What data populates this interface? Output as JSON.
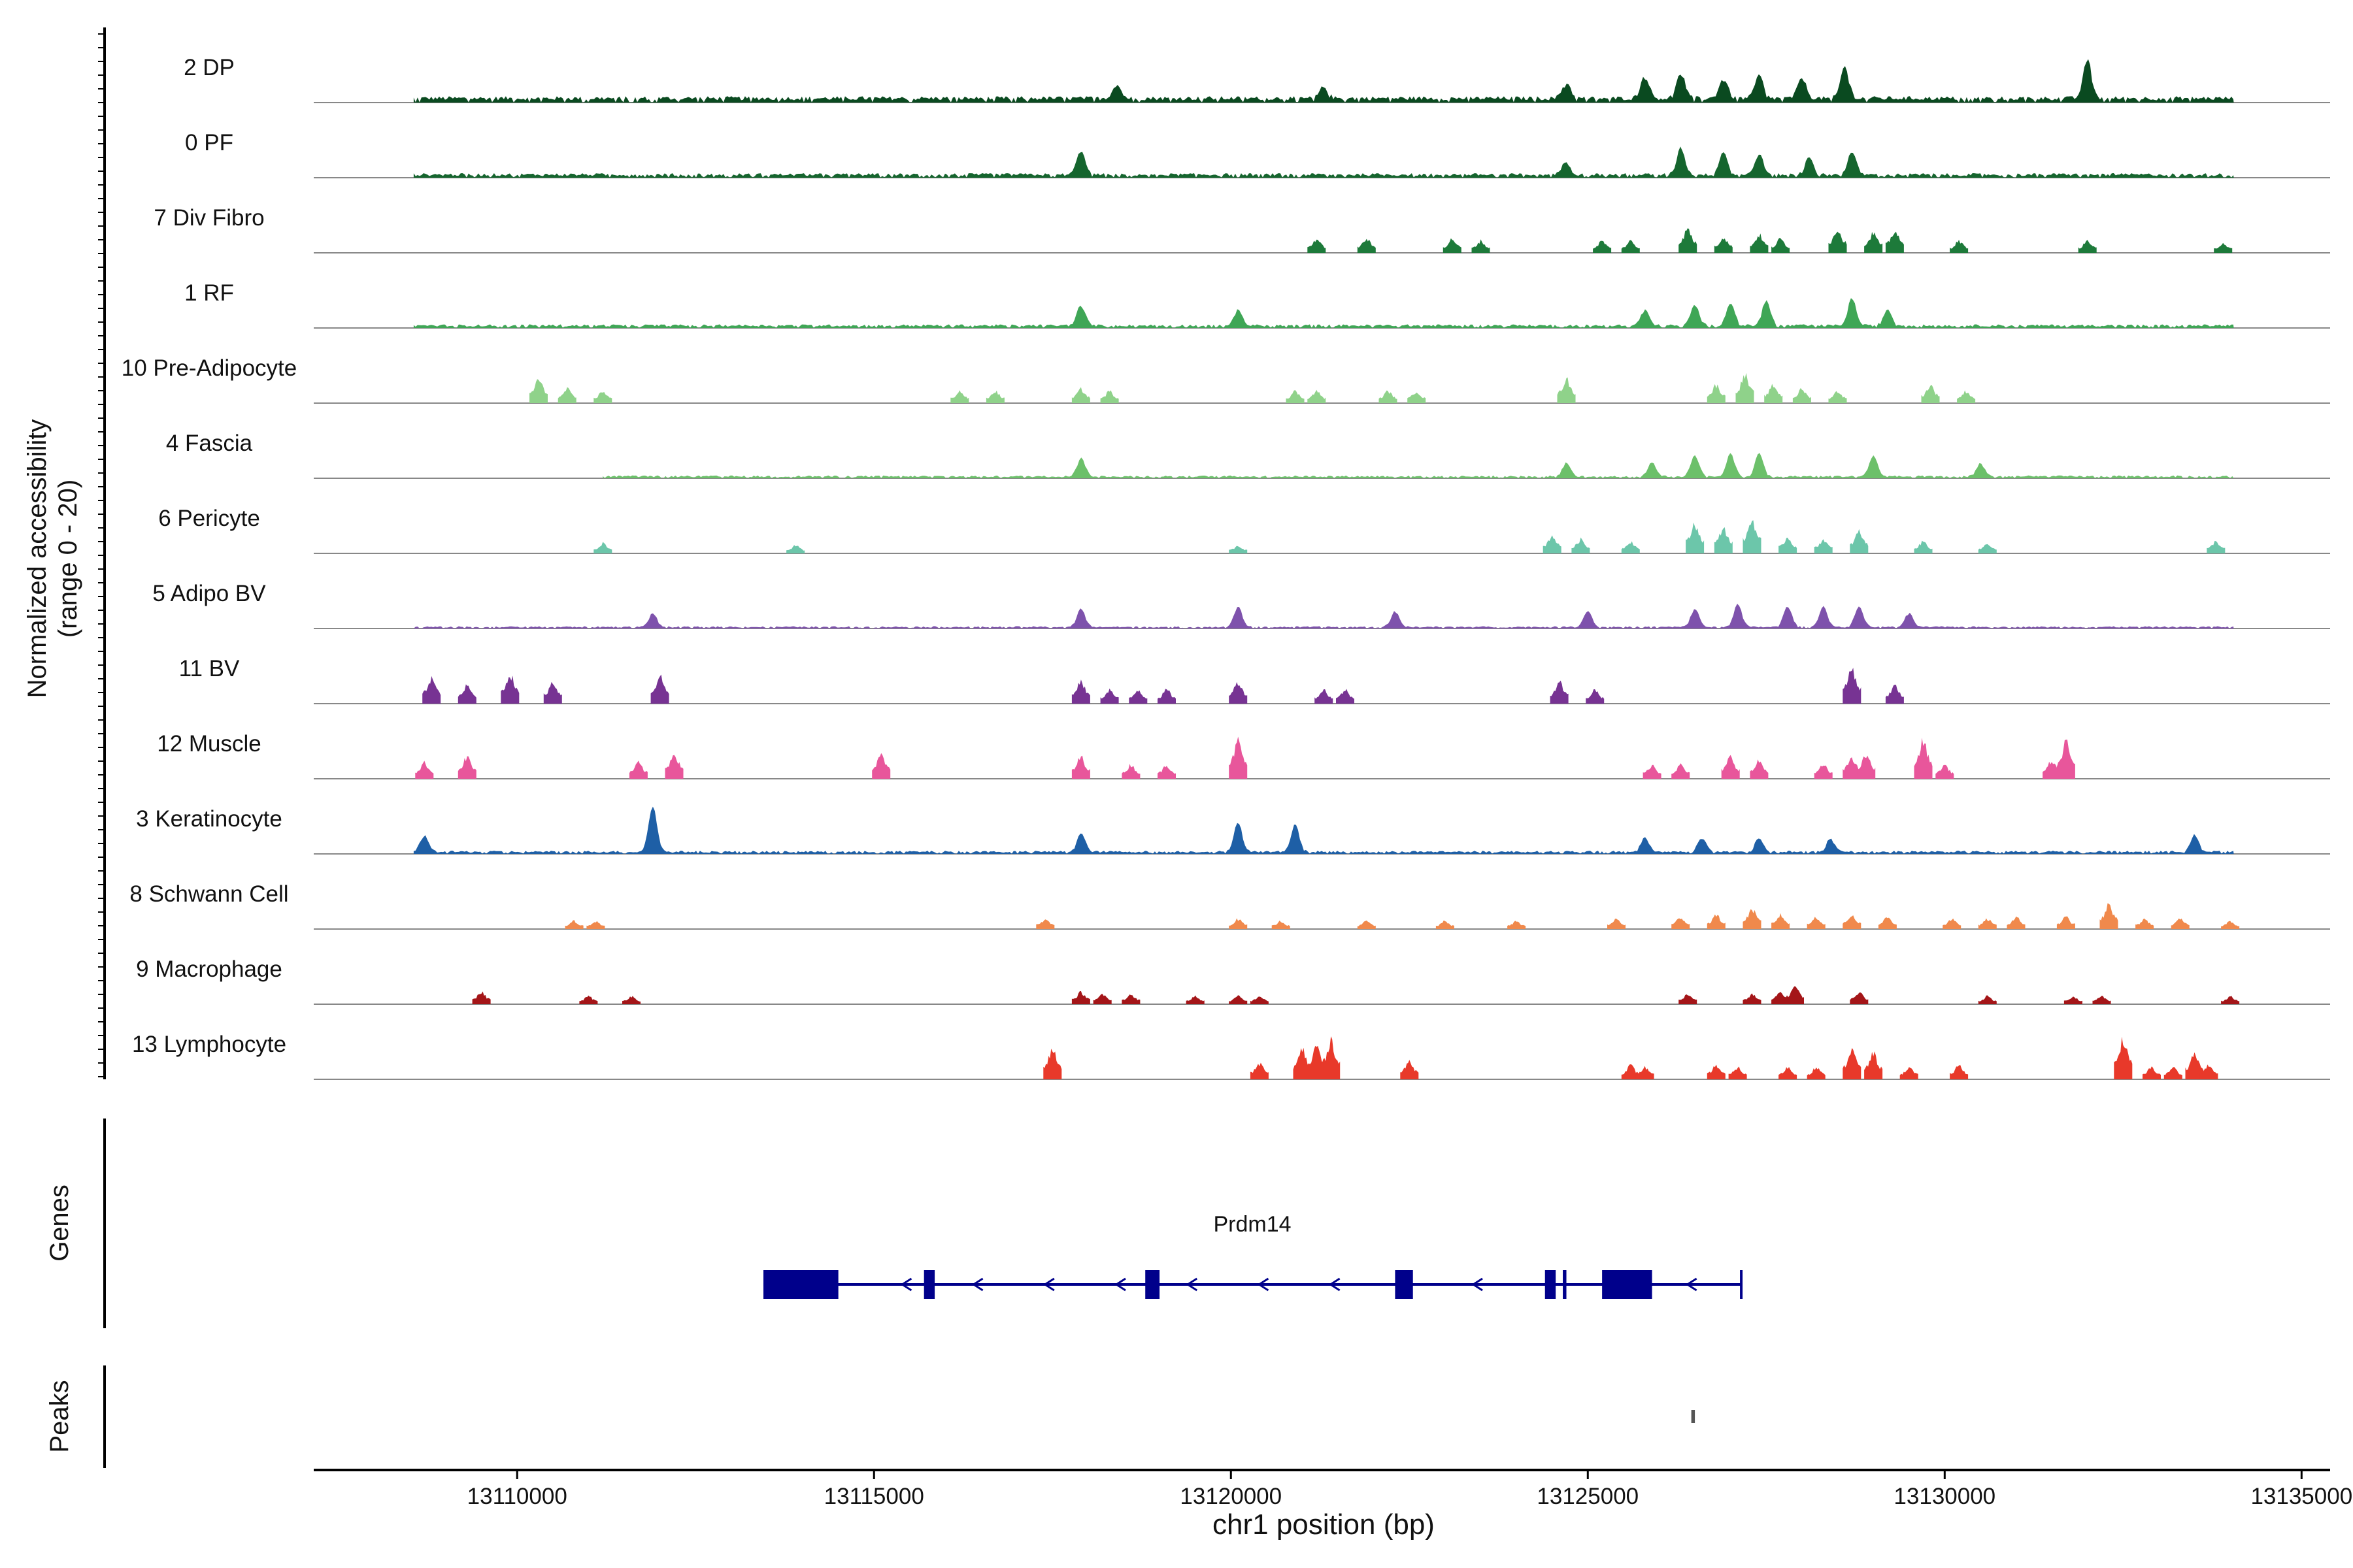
{
  "chart_data": {
    "type": "area",
    "title": "",
    "xlabel": "chr1 position (bp)",
    "ylabel_line1": "Normalized accessibility",
    "ylabel_line2": "(range 0 - 20)",
    "ylim": [
      0,
      20
    ],
    "xlim": [
      13107150,
      13135400
    ],
    "x_ticks": [
      13110000,
      13115000,
      13120000,
      13125000,
      13130000,
      13135000
    ],
    "x_tick_labels": [
      "13110000",
      "13115000",
      "13120000",
      "13125000",
      "13130000",
      "13135000"
    ],
    "track_start": 13108550,
    "track_end": 13134050,
    "series": [
      {
        "name": "2 DP",
        "color": "#0a4a20",
        "mode": "dense",
        "noise": 0.14,
        "span": [
          13108550,
          13134050
        ],
        "peaks": [
          [
            13118400,
            0.3
          ],
          [
            13121300,
            0.25
          ],
          [
            13124700,
            0.35
          ],
          [
            13125800,
            0.5
          ],
          [
            13126300,
            0.6
          ],
          [
            13126900,
            0.45
          ],
          [
            13127400,
            0.5
          ],
          [
            13128000,
            0.45
          ],
          [
            13128600,
            0.7
          ],
          [
            13132000,
            0.85
          ]
        ]
      },
      {
        "name": "0 PF",
        "color": "#15652e",
        "mode": "dense",
        "noise": 0.1,
        "span": [
          13108550,
          13134050
        ],
        "peaks": [
          [
            13117900,
            0.55
          ],
          [
            13124700,
            0.3
          ],
          [
            13126300,
            0.6
          ],
          [
            13126900,
            0.5
          ],
          [
            13127400,
            0.45
          ],
          [
            13128100,
            0.4
          ],
          [
            13128700,
            0.5
          ]
        ]
      },
      {
        "name": "7 Div Fibro",
        "color": "#1d7a3a",
        "mode": "peaks",
        "peaks": [
          [
            13121200,
            0.35
          ],
          [
            13121900,
            0.35
          ],
          [
            13123100,
            0.35
          ],
          [
            13123500,
            0.3
          ],
          [
            13125200,
            0.3
          ],
          [
            13125600,
            0.3
          ],
          [
            13126400,
            0.6
          ],
          [
            13126900,
            0.4
          ],
          [
            13127400,
            0.45
          ],
          [
            13127700,
            0.35
          ],
          [
            13128500,
            0.6
          ],
          [
            13129000,
            0.5
          ],
          [
            13129300,
            0.55
          ],
          [
            13130200,
            0.3
          ],
          [
            13132000,
            0.3
          ],
          [
            13133900,
            0.25
          ]
        ]
      },
      {
        "name": "1 RF",
        "color": "#3fa656",
        "mode": "dense",
        "noise": 0.08,
        "span": [
          13108550,
          13134050
        ],
        "peaks": [
          [
            13117900,
            0.45
          ],
          [
            13120100,
            0.35
          ],
          [
            13125800,
            0.35
          ],
          [
            13126500,
            0.45
          ],
          [
            13127000,
            0.5
          ],
          [
            13127500,
            0.55
          ],
          [
            13128700,
            0.6
          ],
          [
            13129200,
            0.35
          ]
        ]
      },
      {
        "name": "10 Pre-Adipocyte",
        "color": "#8fd28a",
        "mode": "peaks",
        "peaks": [
          [
            13110300,
            0.6
          ],
          [
            13110700,
            0.35
          ],
          [
            13111200,
            0.3
          ],
          [
            13116200,
            0.3
          ],
          [
            13116700,
            0.3
          ],
          [
            13117900,
            0.35
          ],
          [
            13118300,
            0.3
          ],
          [
            13120900,
            0.3
          ],
          [
            13121200,
            0.3
          ],
          [
            13122200,
            0.3
          ],
          [
            13122600,
            0.3
          ],
          [
            13124700,
            0.6
          ],
          [
            13126800,
            0.45
          ],
          [
            13127200,
            0.7
          ],
          [
            13127600,
            0.45
          ],
          [
            13128000,
            0.35
          ],
          [
            13128500,
            0.3
          ],
          [
            13129800,
            0.45
          ],
          [
            13130300,
            0.3
          ]
        ]
      },
      {
        "name": "4 Fascia",
        "color": "#6cc06a",
        "mode": "dense",
        "noise": 0.06,
        "span": [
          13111200,
          13134050
        ],
        "peaks": [
          [
            13117900,
            0.4
          ],
          [
            13124700,
            0.3
          ],
          [
            13125900,
            0.3
          ],
          [
            13126500,
            0.45
          ],
          [
            13127000,
            0.5
          ],
          [
            13127400,
            0.5
          ],
          [
            13129000,
            0.45
          ],
          [
            13130500,
            0.3
          ]
        ]
      },
      {
        "name": "6 Pericyte",
        "color": "#6cc6aa",
        "mode": "peaks",
        "peaks": [
          [
            13111200,
            0.25
          ],
          [
            13113900,
            0.2
          ],
          [
            13120100,
            0.2
          ],
          [
            13124500,
            0.45
          ],
          [
            13124900,
            0.35
          ],
          [
            13125600,
            0.3
          ],
          [
            13126500,
            0.75
          ],
          [
            13126900,
            0.65
          ],
          [
            13127300,
            0.85
          ],
          [
            13127800,
            0.4
          ],
          [
            13128300,
            0.35
          ],
          [
            13128800,
            0.55
          ],
          [
            13129700,
            0.3
          ],
          [
            13130600,
            0.25
          ],
          [
            13133800,
            0.3
          ]
        ]
      },
      {
        "name": "5 Adipo BV",
        "color": "#7e52ac",
        "mode": "dense",
        "noise": 0.05,
        "span": [
          13108550,
          13134050
        ],
        "peaks": [
          [
            13111900,
            0.3
          ],
          [
            13117900,
            0.4
          ],
          [
            13120100,
            0.45
          ],
          [
            13122300,
            0.35
          ],
          [
            13125000,
            0.35
          ],
          [
            13126500,
            0.4
          ],
          [
            13127100,
            0.5
          ],
          [
            13127800,
            0.45
          ],
          [
            13128300,
            0.45
          ],
          [
            13128800,
            0.45
          ],
          [
            13129500,
            0.3
          ]
        ]
      },
      {
        "name": "11 BV",
        "color": "#773393",
        "mode": "peaks",
        "peaks": [
          [
            13108800,
            0.65
          ],
          [
            13109300,
            0.45
          ],
          [
            13109900,
            0.75
          ],
          [
            13110500,
            0.55
          ],
          [
            13112000,
            0.7
          ],
          [
            13117900,
            0.55
          ],
          [
            13118300,
            0.35
          ],
          [
            13118700,
            0.35
          ],
          [
            13119100,
            0.35
          ],
          [
            13120100,
            0.55
          ],
          [
            13121300,
            0.35
          ],
          [
            13121600,
            0.35
          ],
          [
            13124600,
            0.55
          ],
          [
            13125100,
            0.35
          ],
          [
            13128700,
            0.9
          ],
          [
            13129300,
            0.45
          ]
        ]
      },
      {
        "name": "12 Muscle",
        "color": "#e8569b",
        "mode": "peaks",
        "peaks": [
          [
            13108700,
            0.4
          ],
          [
            13109300,
            0.55
          ],
          [
            13111700,
            0.4
          ],
          [
            13112200,
            0.65
          ],
          [
            13115100,
            0.6
          ],
          [
            13117900,
            0.55
          ],
          [
            13118600,
            0.35
          ],
          [
            13119100,
            0.35
          ],
          [
            13120100,
            0.95
          ],
          [
            13125900,
            0.35
          ],
          [
            13126300,
            0.35
          ],
          [
            13127000,
            0.55
          ],
          [
            13127400,
            0.45
          ],
          [
            13128300,
            0.35
          ],
          [
            13128700,
            0.55
          ],
          [
            13128900,
            0.6
          ],
          [
            13129700,
            0.95
          ],
          [
            13130000,
            0.35
          ],
          [
            13131500,
            0.45
          ],
          [
            13131700,
            0.9
          ]
        ]
      },
      {
        "name": "3 Keratinocyte",
        "color": "#1e5fa6",
        "mode": "dense",
        "noise": 0.07,
        "span": [
          13108550,
          13134050
        ],
        "peaks": [
          [
            13108700,
            0.35
          ],
          [
            13111900,
            1.0
          ],
          [
            13117900,
            0.4
          ],
          [
            13120100,
            0.65
          ],
          [
            13120900,
            0.6
          ],
          [
            13125800,
            0.3
          ],
          [
            13126600,
            0.3
          ],
          [
            13127400,
            0.3
          ],
          [
            13128400,
            0.3
          ],
          [
            13133500,
            0.4
          ]
        ]
      },
      {
        "name": "8 Schwann Cell",
        "color": "#f0894c",
        "mode": "peaks",
        "peaks": [
          [
            13110800,
            0.2
          ],
          [
            13111100,
            0.2
          ],
          [
            13117400,
            0.25
          ],
          [
            13120100,
            0.25
          ],
          [
            13120700,
            0.2
          ],
          [
            13121900,
            0.2
          ],
          [
            13123000,
            0.2
          ],
          [
            13124000,
            0.2
          ],
          [
            13125400,
            0.25
          ],
          [
            13126300,
            0.3
          ],
          [
            13126800,
            0.35
          ],
          [
            13127300,
            0.5
          ],
          [
            13127700,
            0.35
          ],
          [
            13128200,
            0.3
          ],
          [
            13128700,
            0.35
          ],
          [
            13129200,
            0.3
          ],
          [
            13130100,
            0.25
          ],
          [
            13130600,
            0.25
          ],
          [
            13131000,
            0.3
          ],
          [
            13131700,
            0.3
          ],
          [
            13132300,
            0.6
          ],
          [
            13132800,
            0.25
          ],
          [
            13133300,
            0.25
          ],
          [
            13134000,
            0.2
          ]
        ]
      },
      {
        "name": "9 Macrophage",
        "color": "#a41518",
        "mode": "peaks",
        "peaks": [
          [
            13109500,
            0.3
          ],
          [
            13111000,
            0.2
          ],
          [
            13111600,
            0.2
          ],
          [
            13117900,
            0.3
          ],
          [
            13118200,
            0.25
          ],
          [
            13118600,
            0.25
          ],
          [
            13119500,
            0.2
          ],
          [
            13120100,
            0.2
          ],
          [
            13120400,
            0.2
          ],
          [
            13126400,
            0.25
          ],
          [
            13127300,
            0.25
          ],
          [
            13127700,
            0.3
          ],
          [
            13127900,
            0.45
          ],
          [
            13128800,
            0.3
          ],
          [
            13130600,
            0.2
          ],
          [
            13131800,
            0.2
          ],
          [
            13132200,
            0.2
          ],
          [
            13134000,
            0.2
          ]
        ]
      },
      {
        "name": "13 Lymphocyte",
        "color": "#e8392a",
        "mode": "peaks",
        "peaks": [
          [
            13117500,
            0.75
          ],
          [
            13120400,
            0.4
          ],
          [
            13121000,
            0.75
          ],
          [
            13121200,
            0.85
          ],
          [
            13121400,
            1.0
          ],
          [
            13122500,
            0.45
          ],
          [
            13125600,
            0.35
          ],
          [
            13125800,
            0.3
          ],
          [
            13126800,
            0.35
          ],
          [
            13127100,
            0.3
          ],
          [
            13127800,
            0.3
          ],
          [
            13128200,
            0.3
          ],
          [
            13128700,
            0.75
          ],
          [
            13129000,
            0.65
          ],
          [
            13129500,
            0.3
          ],
          [
            13130200,
            0.35
          ],
          [
            13132500,
            1.0
          ],
          [
            13132900,
            0.3
          ],
          [
            13133200,
            0.3
          ],
          [
            13133500,
            0.65
          ],
          [
            13133700,
            0.35
          ]
        ]
      }
    ],
    "genes_label": "Genes",
    "gene": {
      "name": "Prdm14",
      "color": "#00008b",
      "strand": "-",
      "start": 13113450,
      "end": 13127150,
      "exons": [
        [
          13113450,
          13114500
        ],
        [
          13115700,
          13115850
        ],
        [
          13118800,
          13119000
        ],
        [
          13122300,
          13122550
        ],
        [
          13124400,
          13124550
        ],
        [
          13124650,
          13124700
        ],
        [
          13125200,
          13125900
        ]
      ]
    },
    "peaks_label": "Peaks",
    "peak_regions": [
      [
        13126450,
        13126500
      ]
    ]
  }
}
